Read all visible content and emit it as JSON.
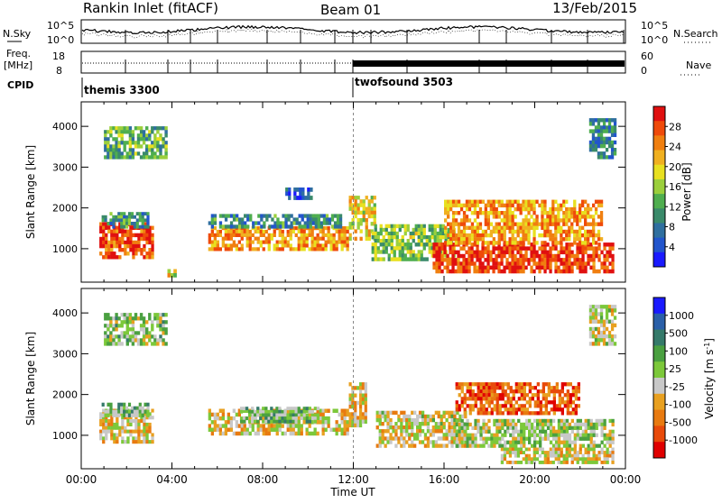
{
  "header": {
    "station": "Rankin Inlet (fitACF)",
    "beam": "Beam 01",
    "date": "13/Feb/2015"
  },
  "top_panels": {
    "nsky_label": "N.Sky",
    "nsearch_label": "N.Search",
    "nsky_ticks": [
      "10^5",
      "10^0"
    ],
    "nsearch_ticks": [
      "10^5",
      "10^0"
    ],
    "freq_label_1": "Freq.",
    "freq_label_2": "[MHz]",
    "freq_ticks": [
      "18",
      "8"
    ],
    "nave_label": "Nave",
    "nave_ticks": [
      "60",
      "0"
    ],
    "cpid_label": "CPID",
    "cpid_segments": [
      {
        "name": "themis 3300",
        "start_hour": 0,
        "end_hour": 12
      },
      {
        "name": "twofsound 3503",
        "start_hour": 12,
        "end_hour": 24
      }
    ]
  },
  "colors": {
    "power_scale": [
      "#1a1aff",
      "#2255cc",
      "#2f6f9f",
      "#3a8a6a",
      "#4fae4f",
      "#9bcf3c",
      "#e8e020",
      "#f0b020",
      "#f07f10",
      "#ef4a0a",
      "#e01010"
    ],
    "velocity_scale": [
      "#1a1aff",
      "#2a5fa8",
      "#357a6a",
      "#4aa040",
      "#7cc83a",
      "#c8c8c8",
      "#e8a020",
      "#e87a10",
      "#e84a0a",
      "#e00000"
    ]
  },
  "chart_data": [
    {
      "type": "heatmap",
      "title": "Power",
      "xlabel": "",
      "ylabel": "Slant Range [km]",
      "x_ticks": [
        "00:00",
        "04:00",
        "08:00",
        "12:00",
        "16:00",
        "20:00",
        "00:00"
      ],
      "y_ticks": [
        "1000",
        "2000",
        "3000",
        "4000"
      ],
      "xlim_hours": [
        0,
        24
      ],
      "ylim_km": [
        180,
        4600
      ],
      "colorbar_label": "Power [dB]",
      "colorbar_ticks": [
        "4",
        "8",
        "12",
        "16",
        "20",
        "24",
        "28"
      ],
      "colorbar_range": [
        0,
        30
      ],
      "regions": [
        {
          "x": [
            0.8,
            3.2
          ],
          "y": [
            750,
            1650
          ],
          "value": 26
        },
        {
          "x": [
            0.9,
            3.0
          ],
          "y": [
            1500,
            1900
          ],
          "value": 10
        },
        {
          "x": [
            5.6,
            11.8
          ],
          "y": [
            950,
            1550
          ],
          "value": 22
        },
        {
          "x": [
            5.6,
            11.5
          ],
          "y": [
            1500,
            1850
          ],
          "value": 9
        },
        {
          "x": [
            11.8,
            13.0
          ],
          "y": [
            1200,
            2300
          ],
          "value": 18
        },
        {
          "x": [
            12.8,
            16.5
          ],
          "y": [
            700,
            1600
          ],
          "value": 14
        },
        {
          "x": [
            15.5,
            23.5
          ],
          "y": [
            400,
            1150
          ],
          "value": 27
        },
        {
          "x": [
            16.0,
            23.0
          ],
          "y": [
            1100,
            2200
          ],
          "value": 22
        },
        {
          "x": [
            3.8,
            4.2
          ],
          "y": [
            300,
            500
          ],
          "value": 18
        },
        {
          "x": [
            9.0,
            10.2
          ],
          "y": [
            2200,
            2500
          ],
          "value": 6
        },
        {
          "x": [
            1.0,
            3.8
          ],
          "y": [
            3200,
            4000
          ],
          "value": 12
        },
        {
          "x": [
            22.4,
            23.6
          ],
          "y": [
            3200,
            4200
          ],
          "value": 8
        }
      ]
    },
    {
      "type": "heatmap",
      "title": "Velocity",
      "xlabel": "Time UT",
      "ylabel": "Slant Range [km]",
      "x_ticks": [
        "00:00",
        "04:00",
        "08:00",
        "12:00",
        "16:00",
        "20:00",
        "00:00"
      ],
      "y_ticks": [
        "1000",
        "2000",
        "3000",
        "4000"
      ],
      "xlim_hours": [
        0,
        24
      ],
      "ylim_km": [
        180,
        4600
      ],
      "colorbar_label": "Velocity [m s^-1]",
      "colorbar_ticks": [
        "1000",
        "500",
        "100",
        "25",
        "-25",
        "-100",
        "-500",
        "-1000"
      ],
      "colorbar_range": [
        -1000,
        1000
      ],
      "regions": [
        {
          "x": [
            0.8,
            3.2
          ],
          "y": [
            800,
            1650
          ],
          "value": -150
        },
        {
          "x": [
            0.9,
            3.0
          ],
          "y": [
            1450,
            1800
          ],
          "value": 120
        },
        {
          "x": [
            5.6,
            11.8
          ],
          "y": [
            1000,
            1650
          ],
          "value": -180
        },
        {
          "x": [
            7.0,
            10.5
          ],
          "y": [
            1300,
            1700
          ],
          "value": 200
        },
        {
          "x": [
            11.8,
            12.6
          ],
          "y": [
            1200,
            2300
          ],
          "value": -250
        },
        {
          "x": [
            13.0,
            17.0
          ],
          "y": [
            700,
            1600
          ],
          "value": -120
        },
        {
          "x": [
            16.5,
            23.5
          ],
          "y": [
            700,
            1400
          ],
          "value": 0
        },
        {
          "x": [
            16.5,
            22.0
          ],
          "y": [
            1500,
            2300
          ],
          "value": -600
        },
        {
          "x": [
            18.5,
            23.5
          ],
          "y": [
            300,
            700
          ],
          "value": -150
        },
        {
          "x": [
            1.0,
            3.8
          ],
          "y": [
            3200,
            4000
          ],
          "value": 80
        },
        {
          "x": [
            22.4,
            23.6
          ],
          "y": [
            3200,
            4200
          ],
          "value": -100
        }
      ]
    }
  ]
}
